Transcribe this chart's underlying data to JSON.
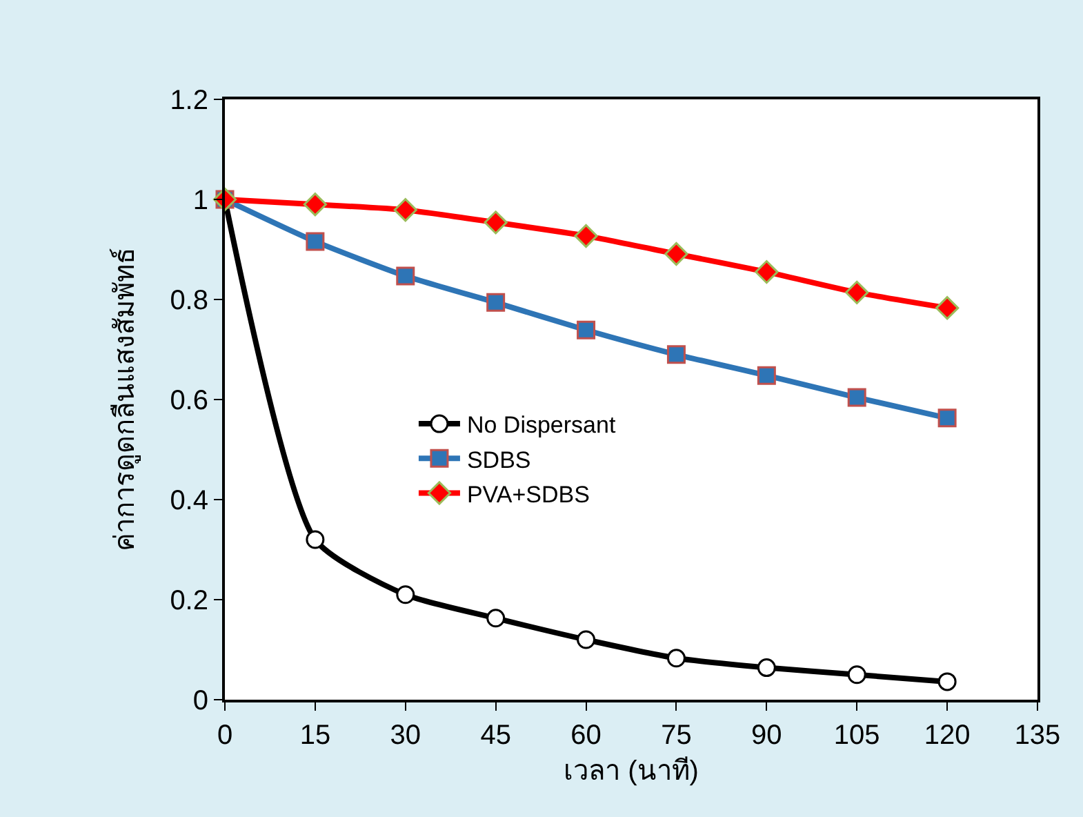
{
  "chart_data": {
    "type": "line",
    "xlabel": "เวลา (นาที)",
    "ylabel": "ค่าการดูดกลืนแสงสัมพัทธ์",
    "x": [
      0,
      15,
      30,
      45,
      60,
      75,
      90,
      105,
      120
    ],
    "series": [
      {
        "name": "No Dispersant",
        "color": "#000000",
        "marker": "circle",
        "values": [
          1,
          0.32,
          0.21,
          0.163,
          0.12,
          0.083,
          0.064,
          0.05,
          0.036
        ]
      },
      {
        "name": "SDBS",
        "color": "#2e75b6",
        "marker": "square",
        "values": [
          1,
          0.916,
          0.847,
          0.794,
          0.739,
          0.69,
          0.648,
          0.604,
          0.563
        ]
      },
      {
        "name": "PVA+SDBS",
        "color": "#ff0000",
        "marker": "diamond",
        "values": [
          1,
          0.99,
          0.979,
          0.954,
          0.927,
          0.891,
          0.855,
          0.814,
          0.783
        ]
      }
    ],
    "xlim": [
      0,
      135
    ],
    "xticks": [
      0,
      15,
      30,
      45,
      60,
      75,
      90,
      105,
      120,
      135
    ],
    "ylim": [
      0,
      1.2
    ],
    "yticks": [
      0,
      0.2,
      0.4,
      0.6,
      0.8,
      1,
      1.2
    ],
    "grid": false,
    "legend": "center",
    "line_style": "solid"
  }
}
